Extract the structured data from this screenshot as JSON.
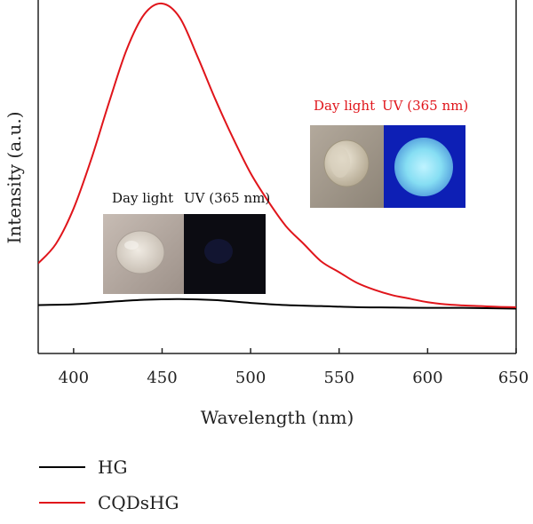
{
  "chart_data": {
    "type": "line",
    "xlabel": "Wavelength (nm)",
    "ylabel": "Intensity (a.u.)",
    "xlim": [
      380,
      650
    ],
    "ylim": [
      0,
      1
    ],
    "xticks": [
      400,
      450,
      500,
      550,
      600,
      650
    ],
    "yticks_shown": false,
    "grid": false,
    "legend_position": "bottom-left-below-plot",
    "series": [
      {
        "name": "HG",
        "color": "#000000",
        "points": [
          [
            380,
            0.137
          ],
          [
            400,
            0.139
          ],
          [
            420,
            0.146
          ],
          [
            440,
            0.152
          ],
          [
            460,
            0.154
          ],
          [
            480,
            0.151
          ],
          [
            500,
            0.143
          ],
          [
            520,
            0.137
          ],
          [
            540,
            0.134
          ],
          [
            560,
            0.131
          ],
          [
            580,
            0.13
          ],
          [
            600,
            0.129
          ],
          [
            620,
            0.129
          ],
          [
            650,
            0.127
          ]
        ]
      },
      {
        "name": "CQDsHG",
        "color": "#e0151b",
        "points": [
          [
            380,
            0.255
          ],
          [
            390,
            0.31
          ],
          [
            400,
            0.41
          ],
          [
            410,
            0.55
          ],
          [
            420,
            0.71
          ],
          [
            430,
            0.86
          ],
          [
            440,
            0.96
          ],
          [
            450,
            0.99
          ],
          [
            460,
            0.95
          ],
          [
            470,
            0.84
          ],
          [
            480,
            0.72
          ],
          [
            490,
            0.61
          ],
          [
            500,
            0.51
          ],
          [
            510,
            0.43
          ],
          [
            520,
            0.36
          ],
          [
            530,
            0.31
          ],
          [
            540,
            0.26
          ],
          [
            550,
            0.23
          ],
          [
            560,
            0.2
          ],
          [
            570,
            0.18
          ],
          [
            580,
            0.165
          ],
          [
            590,
            0.155
          ],
          [
            600,
            0.145
          ],
          [
            610,
            0.139
          ],
          [
            620,
            0.136
          ],
          [
            630,
            0.134
          ],
          [
            640,
            0.132
          ],
          [
            650,
            0.131
          ]
        ]
      }
    ]
  },
  "insets": [
    {
      "labels": [
        "Day light",
        "UV (365 nm)"
      ],
      "label_color": "#111111",
      "daylight_bg": "#b9aea6",
      "daylight_disc": "#ddd6cc",
      "uv_bg": "#0c0c12",
      "uv_disc": "#151a3a"
    },
    {
      "labels": [
        "Day light",
        "UV (365 nm)"
      ],
      "label_color": "#e0151b",
      "daylight_bg": "#a79d90",
      "daylight_disc": "#e3dccd",
      "uv_bg": "#0d1fb5",
      "uv_disc": "#7fdcf2"
    }
  ]
}
